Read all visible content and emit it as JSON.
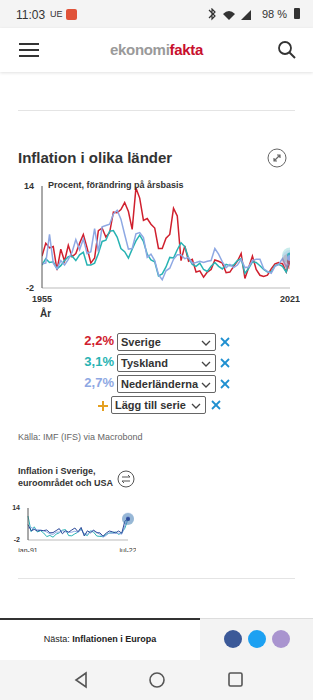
{
  "page": {
    "status_bar": {
      "time": "11:03",
      "carrier": "UE",
      "battery": "98 %"
    },
    "header": {
      "logo": [
        "ekonomi",
        "fakta"
      ]
    },
    "add_series": "Lägg till serie",
    "source": "Källa: IMF (IFS) via Macrobond",
    "footer": {
      "prefix": "Nästa:",
      "next": "Inflationen i Europa"
    }
  },
  "chart_data": [
    {
      "type": "line",
      "title": "Inflation i olika länder",
      "y_label": "Procent, förändring på årsbasis",
      "x_label": "År",
      "x": [
        1955,
        1956,
        1957,
        1958,
        1959,
        1960,
        1961,
        1962,
        1963,
        1964,
        1965,
        1966,
        1967,
        1968,
        1969,
        1970,
        1971,
        1972,
        1973,
        1974,
        1975,
        1976,
        1977,
        1978,
        1979,
        1980,
        1981,
        1982,
        1983,
        1984,
        1985,
        1986,
        1987,
        1988,
        1989,
        1990,
        1991,
        1992,
        1993,
        1994,
        1995,
        1996,
        1997,
        1998,
        1999,
        2000,
        2001,
        2002,
        2003,
        2004,
        2005,
        2006,
        2007,
        2008,
        2009,
        2010,
        2011,
        2012,
        2013,
        2014,
        2015,
        2016,
        2017,
        2018,
        2019,
        2020,
        2021
      ],
      "xlim": [
        1955,
        2021
      ],
      "xticks": [
        1955,
        2021
      ],
      "ylim": [
        -2,
        14
      ],
      "yticks": [
        -2,
        14
      ],
      "grid": false,
      "series": [
        {
          "name": "Sverige",
          "color": "#d0202e",
          "latest_label": "2,2%",
          "values": [
            3.0,
            5.0,
            4.3,
            4.5,
            0.8,
            4.1,
            2.2,
            4.7,
            2.9,
            3.4,
            5.0,
            6.4,
            4.3,
            1.9,
            2.7,
            7.0,
            7.4,
            6.0,
            6.7,
            9.9,
            9.8,
            10.3,
            11.4,
            10.0,
            7.2,
            13.7,
            12.1,
            8.6,
            8.9,
            8.0,
            7.4,
            4.2,
            4.2,
            5.8,
            6.4,
            10.5,
            9.3,
            2.3,
            4.6,
            2.2,
            2.5,
            0.5,
            0.7,
            -0.3,
            0.5,
            0.9,
            2.4,
            2.2,
            1.9,
            0.4,
            0.5,
            1.4,
            2.2,
            3.4,
            -0.5,
            1.2,
            3.0,
            0.9,
            0.0,
            -0.2,
            0.0,
            1.0,
            1.8,
            2.0,
            1.8,
            0.5,
            2.2
          ]
        },
        {
          "name": "Tyskland",
          "color": "#27b3b3",
          "latest_label": "3,1%",
          "values": [
            1.6,
            2.6,
            2.0,
            2.1,
            1.0,
            1.5,
            2.3,
            2.9,
            3.0,
            2.3,
            3.2,
            3.6,
            1.6,
            1.6,
            1.9,
            3.4,
            5.3,
            5.5,
            6.9,
            7.0,
            6.0,
            4.2,
            3.7,
            2.7,
            4.1,
            5.4,
            6.3,
            5.3,
            3.3,
            2.4,
            2.1,
            -0.1,
            0.2,
            1.3,
            2.8,
            2.7,
            4.0,
            5.1,
            4.5,
            2.7,
            1.7,
            1.4,
            1.9,
            0.9,
            0.6,
            1.4,
            2.0,
            1.4,
            1.0,
            1.7,
            1.5,
            1.6,
            2.3,
            2.6,
            0.3,
            1.1,
            2.1,
            2.0,
            1.5,
            0.9,
            0.5,
            0.5,
            1.5,
            1.7,
            1.4,
            0.5,
            3.1
          ]
        },
        {
          "name": "Nederländerna",
          "color": "#8ea8e3",
          "latest_label": "2,7%",
          "values": [
            1.8,
            1.9,
            6.4,
            1.9,
            1.0,
            2.3,
            1.6,
            2.5,
            3.6,
            5.6,
            4.0,
            5.7,
            3.4,
            3.7,
            7.3,
            3.7,
            7.6,
            7.8,
            8.0,
            9.6,
            10.2,
            8.8,
            6.4,
            4.1,
            4.2,
            6.5,
            6.7,
            5.9,
            2.8,
            3.3,
            2.3,
            0.1,
            -0.7,
            0.7,
            1.1,
            2.5,
            3.2,
            3.2,
            2.6,
            2.8,
            1.9,
            2.0,
            2.2,
            2.0,
            2.2,
            2.3,
            4.2,
            3.3,
            2.1,
            1.2,
            1.7,
            1.2,
            1.6,
            2.5,
            1.2,
            1.3,
            2.3,
            2.5,
            2.5,
            1.0,
            0.6,
            0.3,
            1.4,
            1.7,
            2.6,
            1.3,
            2.7
          ]
        }
      ]
    },
    {
      "type": "line",
      "title": "Inflation i Sverige, euroområdet och USA",
      "categories": [
        "jan-91",
        null,
        null,
        null,
        null,
        null,
        null,
        null,
        null,
        null,
        null,
        null,
        null,
        null,
        null,
        null,
        null,
        null,
        null,
        null,
        null,
        null,
        null,
        null,
        null,
        null,
        null,
        null,
        null,
        null,
        null,
        null,
        "jul-22"
      ],
      "ylim": [
        -2,
        14
      ],
      "yticks": [
        -2,
        14
      ],
      "grid": false,
      "series": [
        {
          "color": "#2bb3b5",
          "values": [
            10.0,
            2.2,
            4.6,
            2.0,
            2.7,
            1.5,
            -0.3,
            0.3,
            -0.6,
            0.9,
            1.6,
            2.9,
            3.2,
            0.2,
            0.1,
            1.1,
            1.9,
            3.5,
            0.9,
            0.2,
            2.6,
            1.9,
            0.0,
            -0.2,
            -0.3,
            0.8,
            1.4,
            1.6,
            2.0,
            0.8,
            1.6,
            3.9,
            8.5
          ]
        },
        {
          "color": "#8ea8e3",
          "values": [
            4.0,
            4.3,
            3.5,
            3.1,
            3.0,
            2.6,
            2.0,
            1.1,
            0.8,
            1.9,
            2.0,
            2.6,
            2.1,
            1.9,
            1.9,
            2.4,
            1.8,
            3.2,
            1.1,
            0.9,
            2.3,
            2.7,
            2.0,
            0.8,
            -0.6,
            0.3,
            1.7,
            1.3,
            1.4,
            1.4,
            0.9,
            5.1,
            8.9
          ]
        },
        {
          "color": "#2d4b9a",
          "values": [
            5.7,
            2.6,
            3.3,
            2.5,
            2.8,
            2.7,
            3.0,
            1.6,
            1.7,
            2.7,
            3.7,
            1.1,
            2.6,
            1.9,
            3.0,
            4.0,
            2.1,
            4.3,
            0.0,
            2.6,
            1.6,
            2.9,
            1.6,
            1.6,
            -0.1,
            1.4,
            2.5,
            2.1,
            1.6,
            2.5,
            1.4,
            7.5,
            8.5
          ]
        }
      ]
    }
  ]
}
